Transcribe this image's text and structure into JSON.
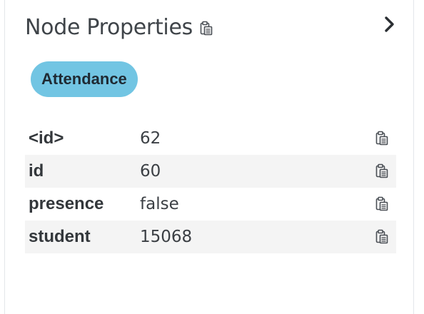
{
  "panel": {
    "title": "Node Properties",
    "title_icon": "clipboard-icon",
    "collapse_icon": "chevron-right-icon"
  },
  "labels": [
    {
      "text": "Attendance",
      "color": "#72c5e3"
    }
  ],
  "properties": [
    {
      "key": "<id>",
      "value": "62"
    },
    {
      "key": "id",
      "value": "60"
    },
    {
      "key": "presence",
      "value": "false"
    },
    {
      "key": "student",
      "value": "15068"
    }
  ],
  "colors": {
    "label_bg": "#72c5e3",
    "row_stripe": "#f4f4f4",
    "text": "#3b3f44"
  }
}
